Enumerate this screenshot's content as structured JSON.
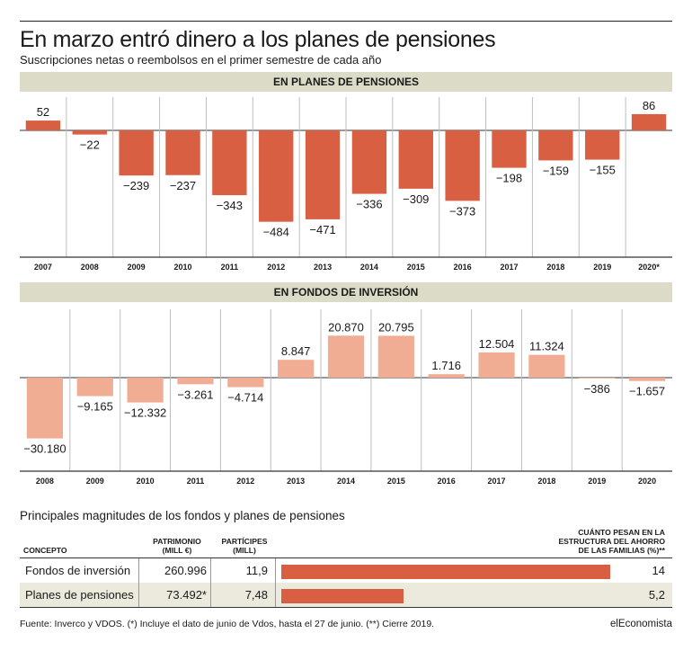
{
  "title": "En marzo entró dinero a los planes de pensiones",
  "subtitle": "Suscripciones netas o reembolsos en el primer semestre de cada año",
  "chart_data": [
    {
      "type": "bar",
      "band_label": "EN PLANES DE PENSIONES",
      "categories": [
        "2007",
        "2008",
        "2009",
        "2010",
        "2011",
        "2012",
        "2013",
        "2014",
        "2015",
        "2016",
        "2017",
        "2018",
        "2019",
        "2020*"
      ],
      "values": [
        52,
        -22,
        -239,
        -237,
        -343,
        -484,
        -471,
        -336,
        -309,
        -373,
        -198,
        -159,
        -155,
        86
      ],
      "labels": [
        "52",
        "−22",
        "−239",
        "−237",
        "−343",
        "−484",
        "−471",
        "−336",
        "−309",
        "−373",
        "−198",
        "−159",
        "−155",
        "86"
      ],
      "color": "#d95f43"
    },
    {
      "type": "bar",
      "band_label": "EN FONDOS DE INVERSIÓN",
      "categories": [
        "2008",
        "2009",
        "2010",
        "2011",
        "2012",
        "2013",
        "2014",
        "2015",
        "2016",
        "2017",
        "2018",
        "2019",
        "2020"
      ],
      "values": [
        -30180,
        -9165,
        -12332,
        -3261,
        -4714,
        8847,
        20870,
        20795,
        1716,
        12504,
        11324,
        -386,
        -1657
      ],
      "labels": [
        "−30.180",
        "−9.165",
        "−12.332",
        "−3.261",
        "−4.714",
        "8.847",
        "20.870",
        "20.795",
        "1.716",
        "12.504",
        "11.324",
        "−386",
        "−1.657"
      ],
      "color": "#f0ad93"
    }
  ],
  "table": {
    "title": "Principales magnitudes de los fondos y planes de pensiones",
    "headers": {
      "concept": "CONCEPTO",
      "patrimonio_1": "PATRIMONIO",
      "patrimonio_2": "(MILL €)",
      "participes_1": "PARTÍCIPES",
      "participes_2": "(MILL)",
      "weight_1": "CUÁNTO PESAN EN LA",
      "weight_2": "ESTRUCTURA DEL AHORRO",
      "weight_3": "DE LAS FAMILIAS (%)**"
    },
    "rows": [
      {
        "concept": "Fondos de inversión",
        "patrimonio": "260.996",
        "participes": "11,9",
        "weight_label": "14",
        "weight": 14
      },
      {
        "concept": "Planes de pensiones",
        "patrimonio": "73.492*",
        "participes": "7,48",
        "weight_label": "5,2",
        "weight": 5.2
      }
    ],
    "bar_color": "#d95f43"
  },
  "footer": {
    "source": "Fuente: Inverco y VDOS. (*) Incluye el dato de junio de Vdos, hasta el 27 de junio. (**) Cierre 2019.",
    "brand": "elEconomista"
  }
}
